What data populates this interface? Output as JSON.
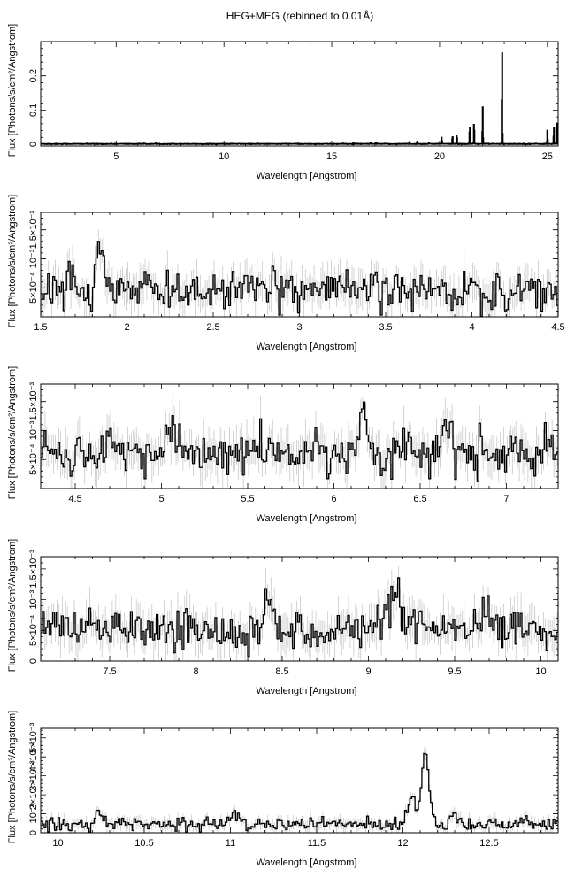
{
  "title": "HEG+MEG (rebinned to 0.01Å)",
  "colors": {
    "line": "#000000",
    "error": "#c8c8c8",
    "axis": "#000000"
  },
  "chart_data": [
    {
      "type": "line",
      "title": "HEG+MEG (rebinned to 0.01Å)",
      "xlabel": "Wavelength [Angstrom]",
      "ylabel": "Flux [Photons/s/cm²/Angstrom]",
      "xlim": [
        1.5,
        25.5
      ],
      "ylim": [
        -0.005,
        0.3
      ],
      "xticks": [
        {
          "v": 5,
          "label": "5"
        },
        {
          "v": 10,
          "label": "10"
        },
        {
          "v": 15,
          "label": "15"
        },
        {
          "v": 20,
          "label": "20"
        },
        {
          "v": 25,
          "label": "25"
        }
      ],
      "yticks": [
        {
          "v": 0,
          "label": "0"
        },
        {
          "v": 0.1,
          "label": "0.1"
        },
        {
          "v": 0.2,
          "label": "0.2"
        }
      ],
      "baseline": 0.001,
      "noise": 0.0006,
      "lines": [
        {
          "x": 16.0,
          "h": 0.002
        },
        {
          "x": 16.8,
          "h": 0.003
        },
        {
          "x": 17.05,
          "h": 0.004
        },
        {
          "x": 18.6,
          "h": 0.005
        },
        {
          "x": 18.97,
          "h": 0.008
        },
        {
          "x": 19.5,
          "h": 0.004
        },
        {
          "x": 20.1,
          "h": 0.02
        },
        {
          "x": 20.6,
          "h": 0.025
        },
        {
          "x": 20.8,
          "h": 0.03
        },
        {
          "x": 21.4,
          "h": 0.06
        },
        {
          "x": 21.6,
          "h": 0.07
        },
        {
          "x": 22.0,
          "h": 0.11
        },
        {
          "x": 22.9,
          "h": 0.29
        },
        {
          "x": 25.0,
          "h": 0.04
        },
        {
          "x": 25.3,
          "h": 0.05
        },
        {
          "x": 25.45,
          "h": 0.06
        }
      ]
    },
    {
      "type": "line",
      "xlabel": "Wavelength [Angstrom]",
      "ylabel": "Flux [Photons/s/cm²/Angstrom]",
      "xlim": [
        1.5,
        4.5
      ],
      "ylim": [
        0,
        0.0018
      ],
      "xticks": [
        {
          "v": 1.5,
          "label": "1.5"
        },
        {
          "v": 2,
          "label": "2"
        },
        {
          "v": 2.5,
          "label": "2.5"
        },
        {
          "v": 3,
          "label": "3"
        },
        {
          "v": 3.5,
          "label": "3.5"
        },
        {
          "v": 4,
          "label": "4"
        },
        {
          "v": 4.5,
          "label": "4.5"
        }
      ],
      "yticks": [
        {
          "v": 0.0005,
          "label": "5×10⁻⁴"
        },
        {
          "v": 0.001,
          "label": "10⁻³"
        },
        {
          "v": 0.0015,
          "label": "1.5×10⁻³"
        }
      ],
      "baseline": 0.00045,
      "noise": 0.00016,
      "lines": [
        {
          "x": 1.85,
          "h": 0.00075
        },
        {
          "x": 1.68,
          "h": 0.0003
        }
      ]
    },
    {
      "type": "line",
      "xlabel": "Wavelength [Angstrom]",
      "ylabel": "Flux [Photons/s/cm²/Angstrom]",
      "xlim": [
        4.3,
        7.3
      ],
      "ylim": [
        0,
        0.0018
      ],
      "xticks": [
        {
          "v": 4.5,
          "label": "4.5"
        },
        {
          "v": 5,
          "label": "5"
        },
        {
          "v": 5.5,
          "label": "5.5"
        },
        {
          "v": 6,
          "label": "6"
        },
        {
          "v": 6.5,
          "label": "6.5"
        },
        {
          "v": 7,
          "label": "7"
        }
      ],
      "yticks": [
        {
          "v": 0.0005,
          "label": "5×10⁻⁴"
        },
        {
          "v": 0.001,
          "label": "10⁻³"
        },
        {
          "v": 0.0015,
          "label": "1.5×10⁻³"
        }
      ],
      "baseline": 0.0006,
      "noise": 0.00018,
      "lines": [
        {
          "x": 6.17,
          "h": 0.0008
        },
        {
          "x": 6.65,
          "h": 0.0005
        },
        {
          "x": 5.05,
          "h": 0.0004
        },
        {
          "x": 4.7,
          "h": 0.0003
        }
      ]
    },
    {
      "type": "line",
      "xlabel": "Wavelength [Angstrom]",
      "ylabel": "Flux [Photons/s/cm²/Angstrom]",
      "xlim": [
        7.1,
        10.1
      ],
      "ylim": [
        0,
        0.0017
      ],
      "xticks": [
        {
          "v": 7.5,
          "label": "7.5"
        },
        {
          "v": 8,
          "label": "8"
        },
        {
          "v": 8.5,
          "label": "8.5"
        },
        {
          "v": 9,
          "label": "9"
        },
        {
          "v": 9.5,
          "label": "9.5"
        },
        {
          "v": 10,
          "label": "10"
        }
      ],
      "yticks": [
        {
          "v": 0,
          "label": "0"
        },
        {
          "v": 0.0005,
          "label": "5×10⁻⁴"
        },
        {
          "v": 0.001,
          "label": "10⁻³"
        },
        {
          "v": 0.0015,
          "label": "1.5×10⁻³"
        }
      ],
      "baseline": 0.0005,
      "noise": 0.00016,
      "lines": [
        {
          "x": 8.42,
          "h": 0.0005
        },
        {
          "x": 9.17,
          "h": 0.0006
        },
        {
          "x": 9.1,
          "h": 0.0004
        },
        {
          "x": 9.7,
          "h": 0.0003
        }
      ]
    },
    {
      "type": "line",
      "xlabel": "Wavelength [Angstrom]",
      "ylabel": "Flux [Photons/s/cm²/Angstrom]",
      "xlim": [
        9.9,
        12.9
      ],
      "ylim": [
        0,
        0.0055
      ],
      "xticks": [
        {
          "v": 10,
          "label": "10"
        },
        {
          "v": 10.5,
          "label": "10.5"
        },
        {
          "v": 11,
          "label": "11"
        },
        {
          "v": 11.5,
          "label": "11.5"
        },
        {
          "v": 12,
          "label": "12"
        },
        {
          "v": 12.5,
          "label": "12.5"
        }
      ],
      "yticks": [
        {
          "v": 0,
          "label": "0"
        },
        {
          "v": 0.001,
          "label": "10⁻³"
        },
        {
          "v": 0.002,
          "label": "2×10⁻³"
        },
        {
          "v": 0.003,
          "label": "3×10⁻³"
        },
        {
          "v": 0.004,
          "label": "4×10⁻³"
        },
        {
          "v": 0.005,
          "label": "5×10⁻³"
        }
      ],
      "baseline": 0.00045,
      "noise": 0.00017,
      "lines": [
        {
          "x": 12.13,
          "h": 0.0038
        },
        {
          "x": 12.05,
          "h": 0.0015
        },
        {
          "x": 10.24,
          "h": 0.0007
        },
        {
          "x": 11.02,
          "h": 0.0005
        },
        {
          "x": 12.3,
          "h": 0.0006
        }
      ]
    }
  ]
}
